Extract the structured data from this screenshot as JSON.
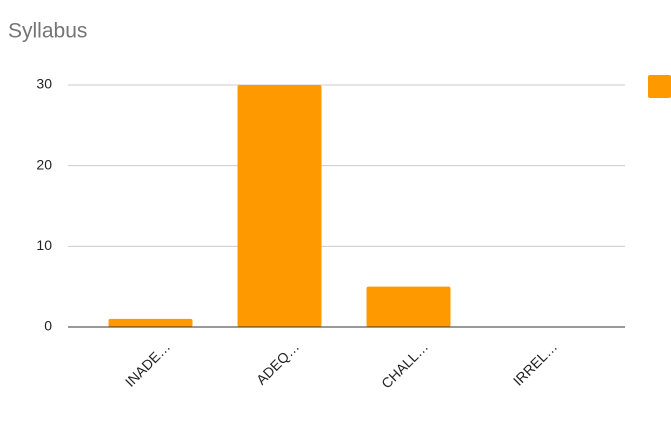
{
  "chart_data": {
    "type": "bar",
    "title": "Syllabus",
    "categories": [
      "INADE…",
      "ADEQ…",
      "CHALL…",
      "IRREL…"
    ],
    "values": [
      1,
      30,
      5,
      0
    ],
    "color": "#ff9900",
    "ylim": [
      0,
      30
    ],
    "yticks": [
      0,
      10,
      20,
      30
    ],
    "grid": true
  }
}
